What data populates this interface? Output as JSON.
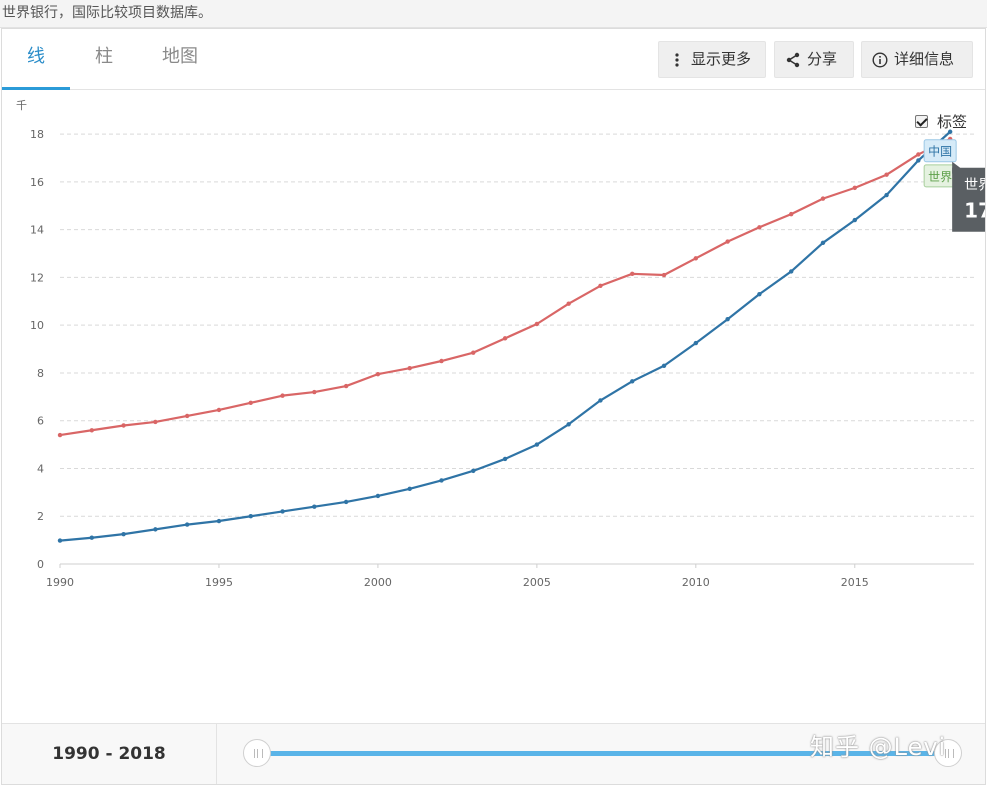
{
  "source_text": "世界银行，国际比较项目数据库。",
  "tabs": [
    {
      "label": "线"
    },
    {
      "label": "柱"
    },
    {
      "label": "地图"
    }
  ],
  "toolbar": {
    "more_label": "显示更多",
    "share_label": "分享",
    "details_label": "详细信息"
  },
  "label_toggle": {
    "label": "标签",
    "checked": true
  },
  "tooltip": {
    "china_tag": "中国",
    "world_tag": "世界",
    "title": "世界",
    "value": "17"
  },
  "footer": {
    "range_label": "1990 - 2018"
  },
  "watermark": "知乎 @Levi",
  "colors": {
    "china": "#2f74a6",
    "world": "#d96666",
    "accent": "#2b9bd8"
  },
  "chart_data": {
    "type": "line",
    "ylabel": "千",
    "xlim": [
      1990,
      2018
    ],
    "ylim": [
      0,
      18
    ],
    "yticks": [
      0,
      2,
      4,
      6,
      8,
      10,
      12,
      14,
      16,
      18
    ],
    "xticks": [
      1990,
      1995,
      2000,
      2005,
      2010,
      2015
    ],
    "x": [
      1990,
      1991,
      1992,
      1993,
      1994,
      1995,
      1996,
      1997,
      1998,
      1999,
      2000,
      2001,
      2002,
      2003,
      2004,
      2005,
      2006,
      2007,
      2008,
      2009,
      2010,
      2011,
      2012,
      2013,
      2014,
      2015,
      2016,
      2017,
      2018
    ],
    "series": [
      {
        "name": "世界",
        "color": "#d96666",
        "values": [
          5.4,
          5.6,
          5.8,
          5.95,
          6.2,
          6.45,
          6.75,
          7.05,
          7.2,
          7.45,
          7.95,
          8.2,
          8.5,
          8.85,
          9.45,
          10.05,
          10.9,
          11.65,
          12.15,
          12.1,
          12.8,
          13.5,
          14.1,
          14.65,
          15.3,
          15.75,
          16.3,
          17.15,
          17.8
        ]
      },
      {
        "name": "中国",
        "color": "#2f74a6",
        "values": [
          0.98,
          1.1,
          1.25,
          1.45,
          1.65,
          1.8,
          2.0,
          2.2,
          2.4,
          2.6,
          2.85,
          3.15,
          3.5,
          3.9,
          4.4,
          5.0,
          5.85,
          6.85,
          7.65,
          8.3,
          9.25,
          10.25,
          11.3,
          12.25,
          13.45,
          14.4,
          15.45,
          16.9,
          18.1
        ]
      }
    ]
  }
}
